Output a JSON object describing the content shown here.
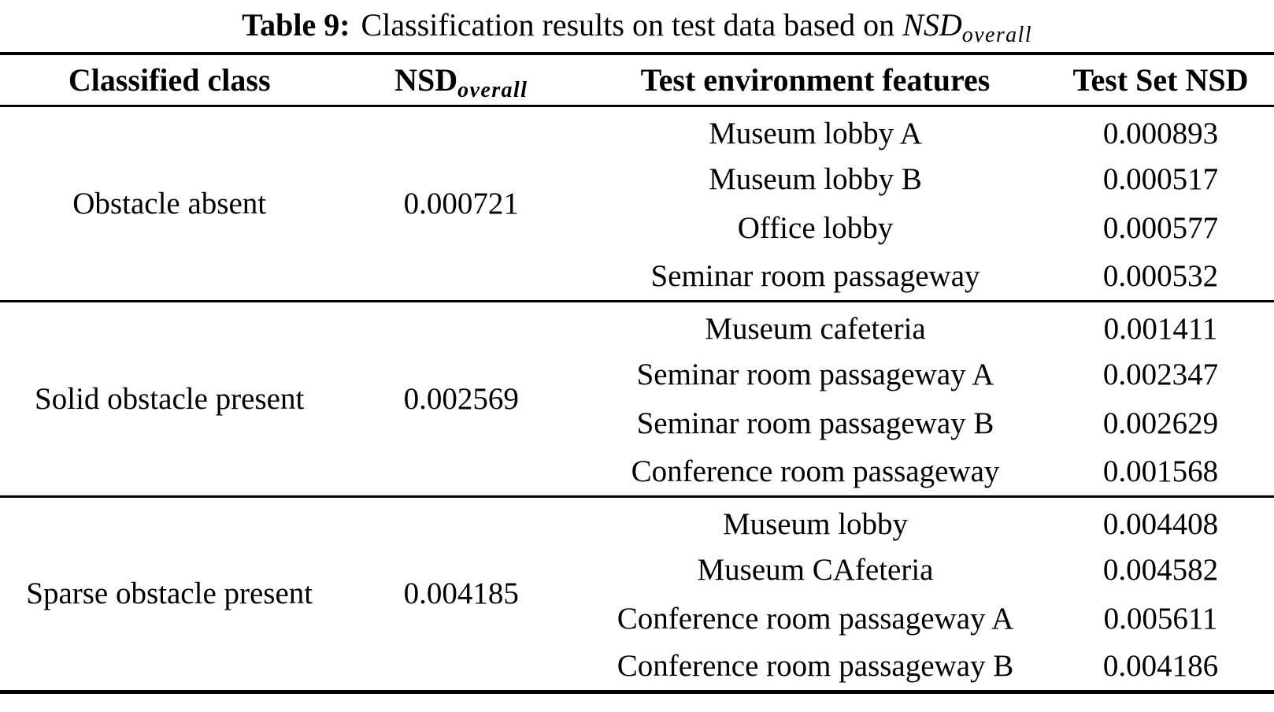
{
  "title": {
    "label": "Table 9:",
    "text": "Classification results on test data based on",
    "math_base": "NSD",
    "math_sub": "overall"
  },
  "header": {
    "classified_class": "Classified class",
    "nsd_base": "NSD",
    "nsd_sub": "overall",
    "test_env": "Test environment features",
    "test_set_nsd": "Test Set NSD"
  },
  "groups": [
    {
      "classified_class": "Obstacle absent",
      "nsd_overall": "0.000721",
      "rows": [
        {
          "environment": "Museum lobby A",
          "nsd": "0.000893"
        },
        {
          "environment": "Museum lobby B",
          "nsd": "0.000517"
        },
        {
          "environment": "Office lobby",
          "nsd": "0.000577"
        },
        {
          "environment": "Seminar room passageway",
          "nsd": "0.000532"
        }
      ]
    },
    {
      "classified_class": "Solid obstacle present",
      "nsd_overall": "0.002569",
      "rows": [
        {
          "environment": "Museum cafeteria",
          "nsd": "0.001411"
        },
        {
          "environment": "Seminar room passageway A",
          "nsd": "0.002347"
        },
        {
          "environment": "Seminar room passageway B",
          "nsd": "0.002629"
        },
        {
          "environment": "Conference room passageway",
          "nsd": "0.001568"
        }
      ]
    },
    {
      "classified_class": "Sparse obstacle present",
      "nsd_overall": "0.004185",
      "rows": [
        {
          "environment": "Museum lobby",
          "nsd": "0.004408"
        },
        {
          "environment": "Museum CAfeteria",
          "nsd": "0.004582"
        },
        {
          "environment": "Conference room passageway A",
          "nsd": "0.005611"
        },
        {
          "environment": "Conference room passageway B",
          "nsd": "0.004186"
        }
      ]
    }
  ]
}
